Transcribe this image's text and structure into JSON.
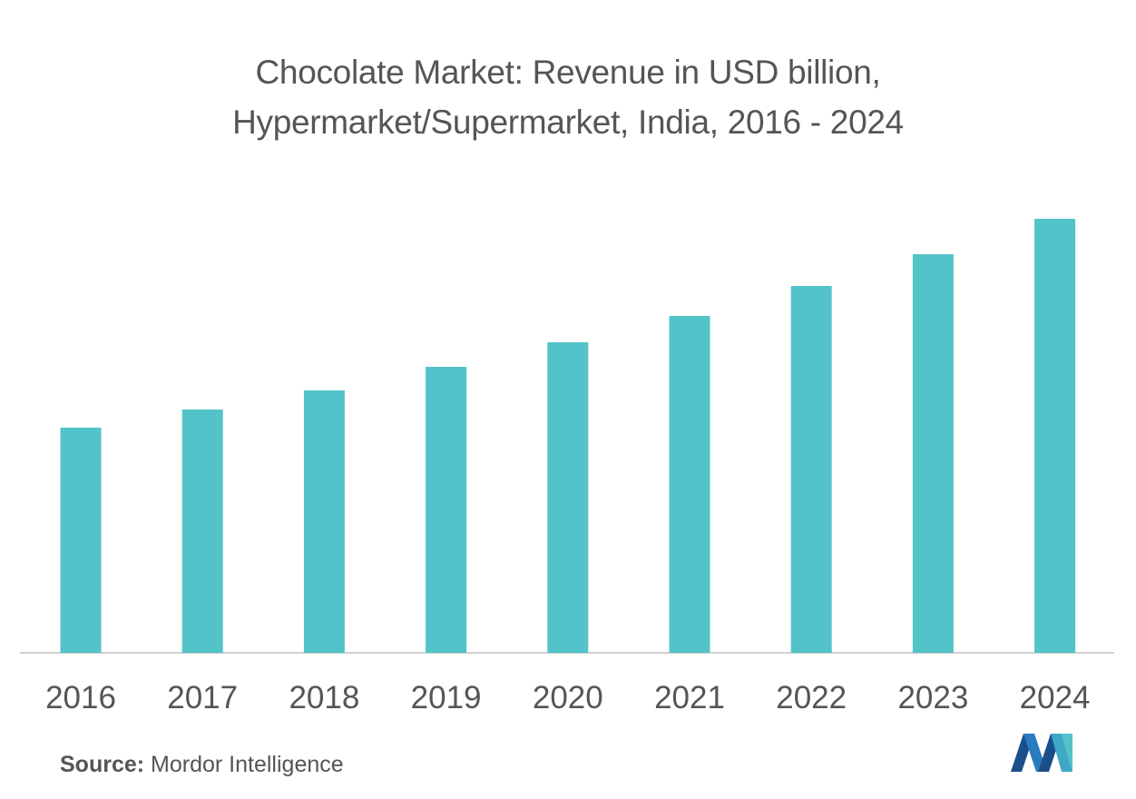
{
  "title_line1": "Chocolate Market: Revenue in USD billion,",
  "title_line2": "Hypermarket/Supermarket, India, 2016 - 2024",
  "source": {
    "label": "Source:",
    "text": "Mordor Intelligence"
  },
  "colors": {
    "bar": "#52c3c9",
    "text": "#555555",
    "axis": "#d0d0d0",
    "logo_dark": "#1b4f8a",
    "logo_light": "#52c3c9"
  },
  "icons": {
    "logo": "mordor-intelligence-logo-icon"
  },
  "chart_data": {
    "type": "bar",
    "title": "Chocolate Market: Revenue in USD billion, Hypermarket/Supermarket, India, 2016 - 2024",
    "categories": [
      "2016",
      "2017",
      "2018",
      "2019",
      "2020",
      "2021",
      "2022",
      "2023",
      "2024"
    ],
    "values": [
      2.48,
      2.68,
      2.89,
      3.15,
      3.42,
      3.71,
      4.04,
      4.39,
      4.78
    ],
    "ylim": [
      0,
      4.78
    ],
    "xlabel": "",
    "ylabel": "",
    "grid": false,
    "y_axis_visible": false,
    "legend": "none"
  }
}
